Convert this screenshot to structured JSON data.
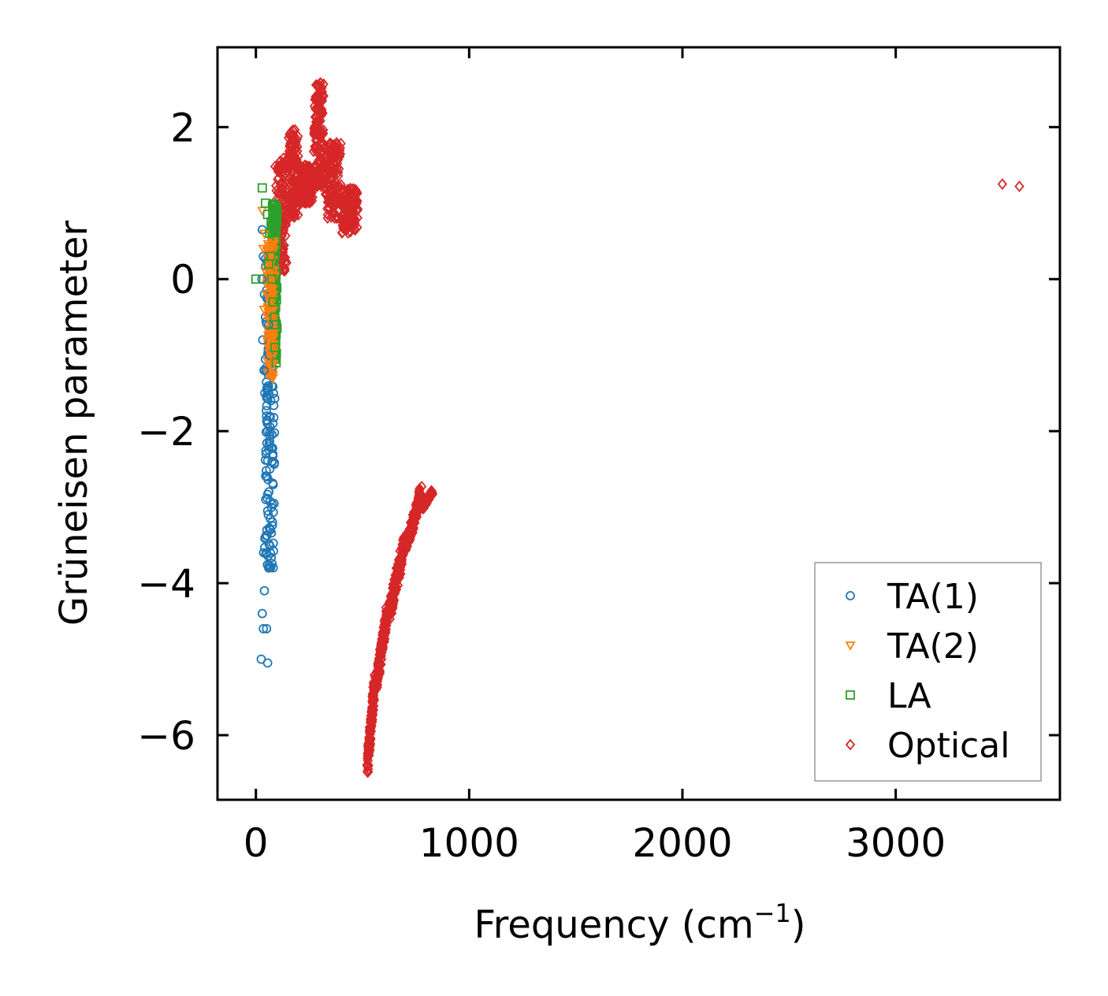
{
  "chart_data": {
    "type": "scatter",
    "title": "",
    "xlabel": "Frequency (cm",
    "xlabel_sup": "−1",
    "xlabel_close": ")",
    "ylabel": "Grüneisen parameter",
    "xlim": [
      -180,
      3770
    ],
    "ylim": [
      -6.85,
      3.05
    ],
    "xticks": [
      0,
      1000,
      2000,
      3000
    ],
    "xtick_labels": [
      "0",
      "1000",
      "2000",
      "3000"
    ],
    "yticks": [
      -6,
      -4,
      -2,
      0,
      2
    ],
    "ytick_labels": [
      "−6",
      "−4",
      "−2",
      "0",
      "2"
    ],
    "grid": false,
    "legend_position": "lower-right",
    "series": [
      {
        "name": "TA(1)",
        "marker": "circle",
        "color": "#1f77b4",
        "points": [
          [
            30,
            0.65
          ],
          [
            35,
            0.3
          ],
          [
            28,
            0.0
          ],
          [
            40,
            -0.2
          ],
          [
            45,
            -0.5
          ],
          [
            32,
            -0.8
          ],
          [
            38,
            -1.2
          ],
          [
            42,
            -1.5
          ],
          [
            50,
            -1.8
          ],
          [
            55,
            -2.0
          ],
          [
            48,
            -2.3
          ],
          [
            52,
            -2.6
          ],
          [
            46,
            -2.9
          ],
          [
            58,
            -3.1
          ],
          [
            44,
            -3.4
          ],
          [
            36,
            -3.6
          ],
          [
            60,
            -3.8
          ],
          [
            40,
            -4.1
          ],
          [
            30,
            -4.4
          ],
          [
            50,
            -4.6
          ],
          [
            25,
            -5.0
          ],
          [
            55,
            -5.05
          ],
          [
            62,
            -1.0
          ],
          [
            65,
            -2.5
          ],
          [
            68,
            -3.3
          ],
          [
            35,
            -4.6
          ],
          [
            60,
            -0.6
          ],
          [
            70,
            -1.6
          ]
        ]
      },
      {
        "name": "TA(2)",
        "marker": "triangle-down",
        "color": "#ff7f0e",
        "points": [
          [
            30,
            0.9
          ],
          [
            40,
            0.6
          ],
          [
            35,
            0.4
          ],
          [
            45,
            0.1
          ],
          [
            50,
            -0.2
          ],
          [
            55,
            -0.5
          ],
          [
            60,
            -0.8
          ],
          [
            70,
            -1.0
          ],
          [
            80,
            -1.3
          ],
          [
            38,
            -0.4
          ],
          [
            65,
            -0.3
          ],
          [
            75,
            -0.9
          ]
        ]
      },
      {
        "name": "LA",
        "marker": "square",
        "color": "#2ca02c",
        "points": [
          [
            30,
            1.2
          ],
          [
            45,
            1.0
          ],
          [
            55,
            0.85
          ],
          [
            65,
            0.6
          ],
          [
            70,
            0.3
          ],
          [
            75,
            0.0
          ],
          [
            80,
            -0.3
          ],
          [
            85,
            -0.6
          ],
          [
            90,
            -0.9
          ],
          [
            95,
            -1.1
          ],
          [
            0,
            0.0
          ],
          [
            60,
            0.2
          ],
          [
            88,
            -0.5
          ]
        ]
      },
      {
        "name": "Optical",
        "marker": "diamond",
        "color": "#d62728",
        "points": [
          [
            3500,
            1.25
          ],
          [
            3580,
            1.22
          ]
        ]
      }
    ],
    "clusters": [
      {
        "series": "Optical",
        "x": [
          90,
          150
        ],
        "y": [
          0.1,
          1.6
        ]
      },
      {
        "series": "Optical",
        "x": [
          150,
          200
        ],
        "y": [
          0.8,
          2.0
        ]
      },
      {
        "series": "Optical",
        "x": [
          200,
          270
        ],
        "y": [
          1.0,
          1.5
        ]
      },
      {
        "series": "Optical",
        "x": [
          270,
          320
        ],
        "y": [
          1.2,
          2.6
        ]
      },
      {
        "series": "Optical",
        "x": [
          320,
          400
        ],
        "y": [
          0.8,
          1.8
        ]
      },
      {
        "series": "Optical",
        "x": [
          400,
          480
        ],
        "y": [
          0.6,
          1.2
        ]
      },
      {
        "series": "Optical",
        "x": [
          520,
          560
        ],
        "y": [
          -6.4,
          -5.3
        ]
      },
      {
        "series": "Optical",
        "x": [
          560,
          620
        ],
        "y": [
          -5.3,
          -4.4
        ]
      },
      {
        "series": "Optical",
        "x": [
          620,
          700
        ],
        "y": [
          -4.4,
          -3.5
        ]
      },
      {
        "series": "Optical",
        "x": [
          700,
          780
        ],
        "y": [
          -3.5,
          -2.8
        ]
      },
      {
        "series": "Optical",
        "x": [
          780,
          830
        ],
        "y": [
          -3.0,
          -2.8
        ]
      },
      {
        "series": "TA(1)",
        "x": [
          40,
          90
        ],
        "y": [
          -3.8,
          0.4
        ]
      },
      {
        "series": "LA",
        "x": [
          70,
          100
        ],
        "y": [
          -1.1,
          1.0
        ]
      },
      {
        "series": "TA(2)",
        "x": [
          50,
          90
        ],
        "y": [
          -1.3,
          0.5
        ]
      }
    ],
    "legend": [
      "TA(1)",
      "TA(2)",
      "LA",
      "Optical"
    ]
  }
}
